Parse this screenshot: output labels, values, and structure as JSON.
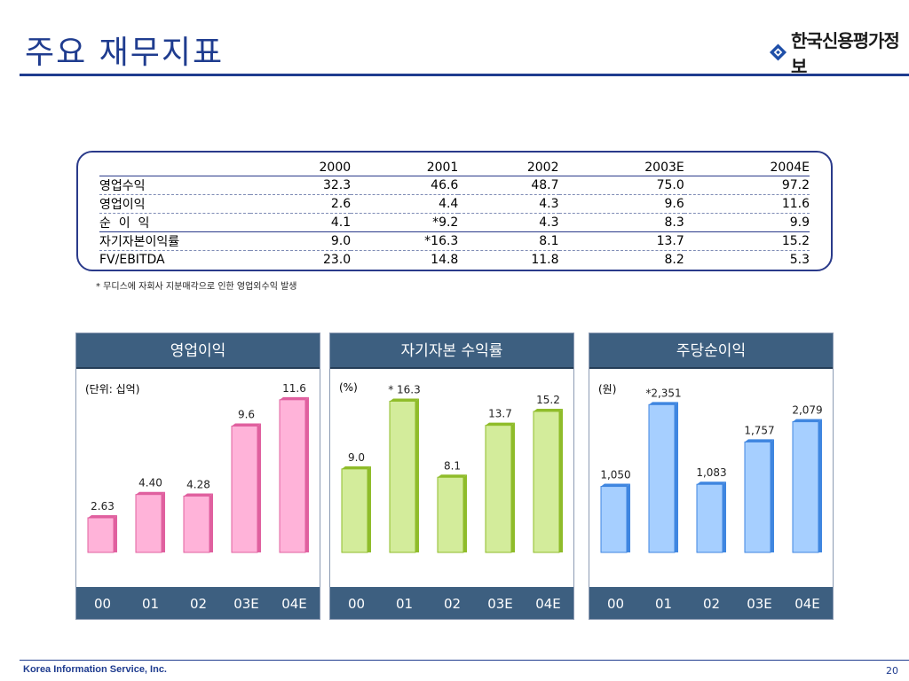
{
  "header": {
    "title": "주요 재무지표",
    "logo_text": "한국신용평가정보",
    "logo_icon": "diamond-logo-icon",
    "accent_color": "#1f3c8f"
  },
  "table": {
    "columns": [
      "",
      "2000",
      "2001",
      "2002",
      "2003E",
      "2004E"
    ],
    "rows": [
      {
        "label": "영업수익",
        "values": [
          "32.3",
          "46.6",
          "48.7",
          "75.0",
          "97.2"
        ]
      },
      {
        "label": "영업이익",
        "values": [
          "2.6",
          "4.4",
          "4.3",
          "9.6",
          "11.6"
        ]
      },
      {
        "label": "순  이  익",
        "values": [
          "4.1",
          "*9.2",
          "4.3",
          "8.3",
          "9.9"
        ]
      },
      {
        "label": "자기자본이익률",
        "values": [
          "9.0",
          "*16.3",
          "8.1",
          "13.7",
          "15.2"
        ]
      },
      {
        "label": "FV/EBITDA",
        "values": [
          "23.0",
          "14.8",
          "11.8",
          "8.2",
          "5.3"
        ]
      }
    ],
    "footnote": "* 무디스에 자회사 지분매각으로 인한 영업외수익 발생"
  },
  "chart_data": [
    {
      "type": "bar",
      "title": "영업이익",
      "unit": "(단위: 십억)",
      "categories": [
        "00",
        "01",
        "02",
        "03E",
        "04E"
      ],
      "values": [
        2.63,
        4.4,
        4.28,
        9.6,
        11.6
      ],
      "labels": [
        "2.63",
        "4.40",
        "4.28",
        "9.6",
        "11.6"
      ],
      "ylim": [
        0,
        16.0
      ],
      "color_front": "#ffb3d9",
      "color_side": "#e0609f"
    },
    {
      "type": "bar",
      "title": "자기자본 수익률",
      "unit": "(%)",
      "categories": [
        "00",
        "01",
        "02",
        "03E",
        "04E"
      ],
      "values": [
        9.0,
        16.3,
        8.1,
        13.7,
        15.2
      ],
      "labels": [
        "9.0",
        "* 16.3",
        "8.1",
        "13.7",
        "15.2"
      ],
      "ylim": [
        0,
        22.7
      ],
      "color_front": "#d3ec9b",
      "color_side": "#8fbc2a"
    },
    {
      "type": "bar",
      "title": "주당순이익",
      "unit": "(원)",
      "categories": [
        "00",
        "01",
        "02",
        "03E",
        "04E"
      ],
      "values": [
        1050,
        2351,
        1083,
        1757,
        2079
      ],
      "labels": [
        "1,050",
        "*2,351",
        "1,083",
        "1,757",
        "2,079"
      ],
      "ylim": [
        0,
        3350
      ],
      "color_front": "#a6cfff",
      "color_side": "#3f86e0"
    }
  ],
  "footer": {
    "company": "Korea Information Service, Inc.",
    "page": "20"
  }
}
